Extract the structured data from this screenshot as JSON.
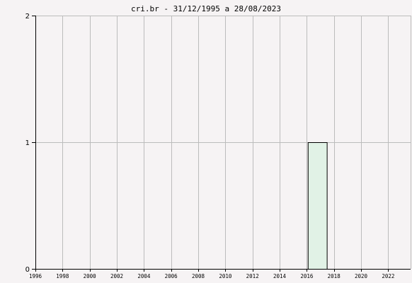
{
  "chart_data": {
    "type": "line",
    "title": "cri.br - 31/12/1995 a 28/08/2023",
    "xlabel": "",
    "ylabel": "",
    "xlim": [
      1996,
      2023.65
    ],
    "ylim": [
      0,
      2
    ],
    "y_ticks": [
      0,
      1,
      2
    ],
    "x_ticks": [
      1996,
      1998,
      2000,
      2002,
      2004,
      2006,
      2008,
      2010,
      2012,
      2014,
      2016,
      2018,
      2020,
      2022
    ],
    "grid": true,
    "legend": "none",
    "series": [
      {
        "points": [
          {
            "x": 1996,
            "y": 0
          },
          {
            "x": 2016.1,
            "y": 0
          },
          {
            "x": 2016.1,
            "y": 1
          },
          {
            "x": 2017.5,
            "y": 1
          },
          {
            "x": 2017.5,
            "y": 0
          },
          {
            "x": 2023.65,
            "y": 0
          }
        ],
        "fill_from": 2016.1,
        "fill_to": 2017.5,
        "line_color": "#000000",
        "fill_color": "#e1f2e6"
      }
    ],
    "colors": {
      "background": "#f6f3f4",
      "grid": "#bcbcbc",
      "axis": "#000000"
    }
  }
}
